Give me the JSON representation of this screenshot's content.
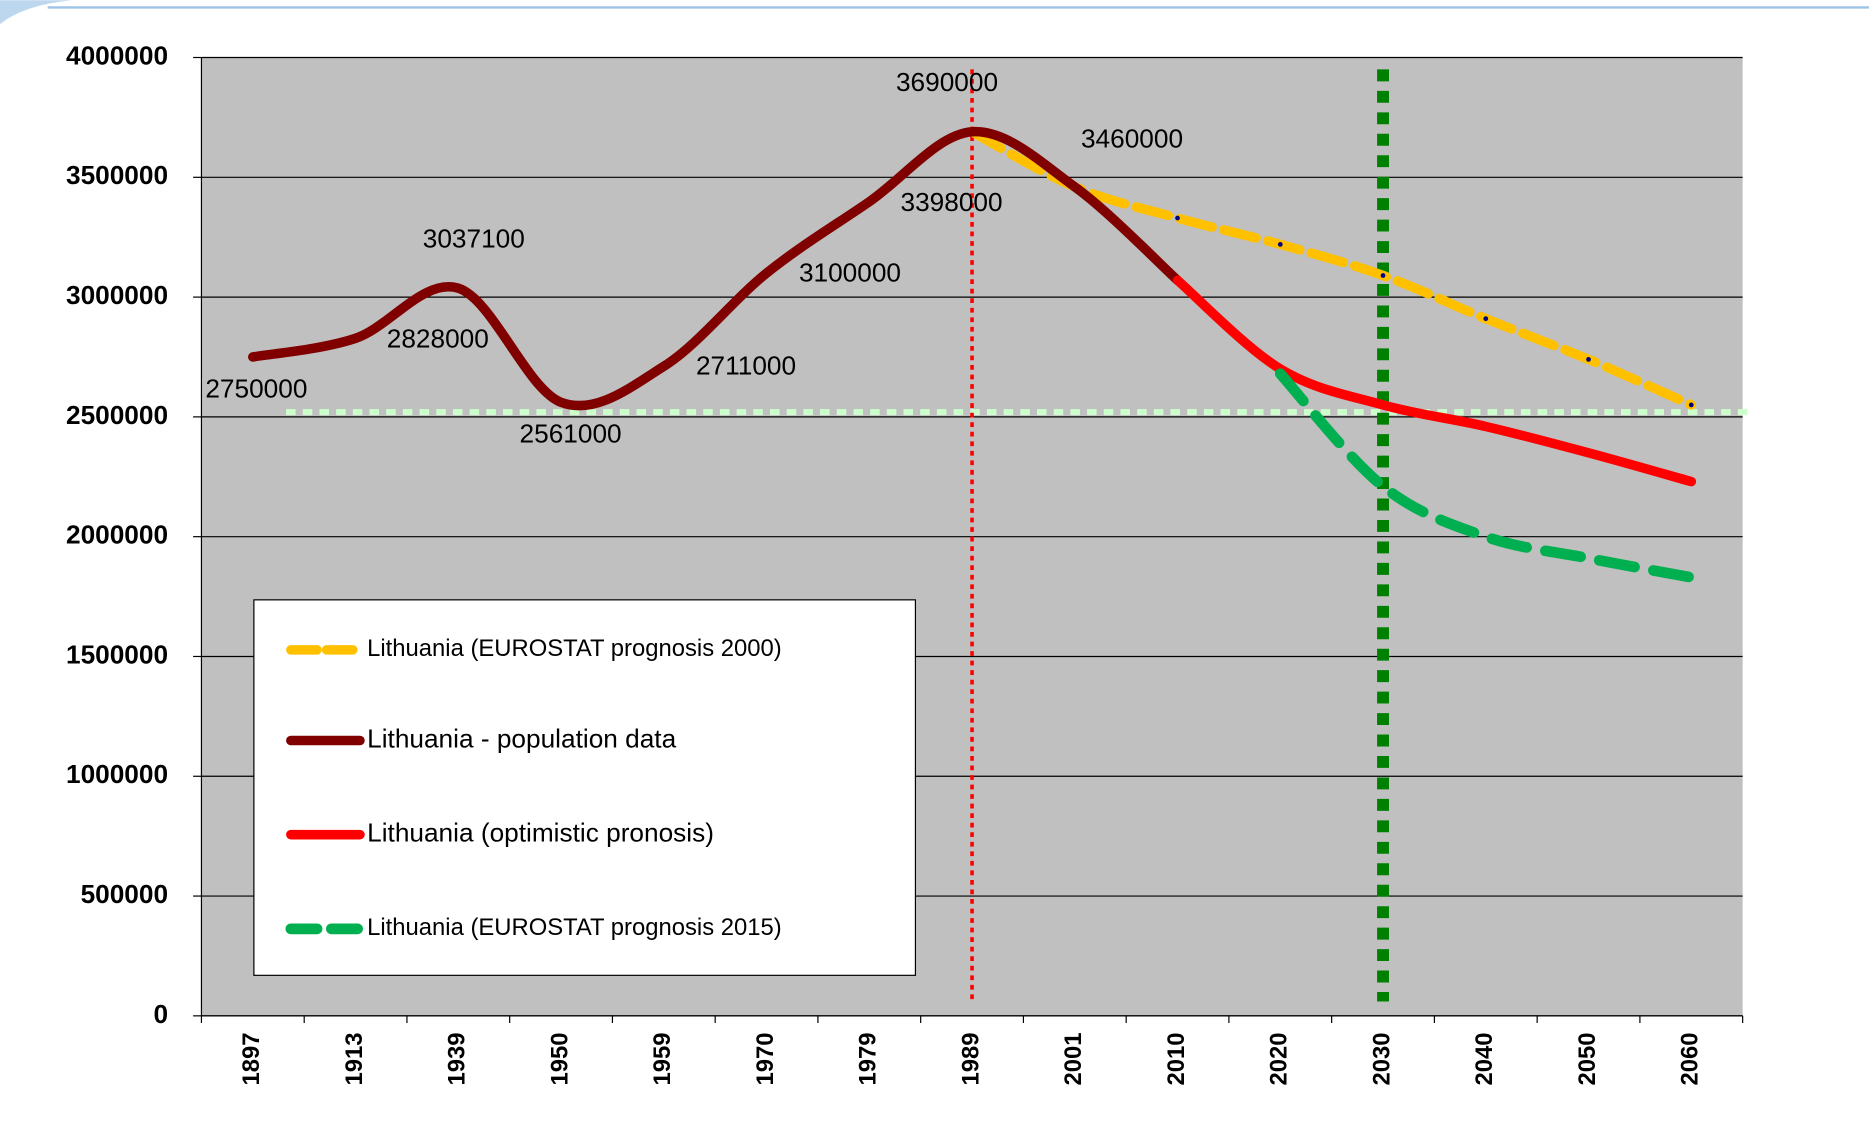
{
  "chart_data": {
    "type": "line",
    "categories": [
      "1897",
      "1913",
      "1939",
      "1950",
      "1959",
      "1970",
      "1979",
      "1989",
      "2001",
      "2010",
      "2020",
      "2030",
      "2040",
      "2050",
      "2060"
    ],
    "series": [
      {
        "name": "Lithuania (EUROSTAT prognosis 2000)",
        "color": "#ffc000",
        "style": "dashed",
        "values": [
          null,
          null,
          null,
          null,
          null,
          null,
          null,
          3690000,
          3460000,
          3330000,
          3220000,
          3090000,
          2910000,
          2740000,
          2550000
        ]
      },
      {
        "name": "Lithuania - population data",
        "color": "#800000",
        "style": "solid",
        "values": [
          2750000,
          2828000,
          3037100,
          2561000,
          2711000,
          3100000,
          3398000,
          3690000,
          3460000,
          3070000,
          null,
          null,
          null,
          null,
          null
        ]
      },
      {
        "name": "Lithuania (optimistic pronosis)",
        "color": "#ff0000",
        "style": "solid",
        "values": [
          null,
          null,
          null,
          null,
          null,
          null,
          null,
          null,
          null,
          3070000,
          2700000,
          2550000,
          2460000,
          2350000,
          2230000
        ]
      },
      {
        "name": "Lithuania (EUROSTAT prognosis 2015)",
        "color": "#00b050",
        "style": "dashed",
        "values": [
          null,
          null,
          null,
          null,
          null,
          null,
          null,
          null,
          null,
          null,
          2680000,
          2210000,
          2000000,
          1910000,
          1830000
        ]
      }
    ],
    "labeled_series": 1,
    "labeled_points": [
      0,
      1,
      2,
      3,
      4,
      5,
      6,
      7,
      8
    ],
    "ylim": [
      0,
      4000000
    ],
    "yticks": [
      0,
      500000,
      1000000,
      1500000,
      2000000,
      2500000,
      3000000,
      3500000,
      4000000
    ],
    "grid": true,
    "reference_lines": [
      {
        "category": "1989",
        "color": "#ff0000"
      },
      {
        "category": "2030",
        "color": "#008000"
      }
    ],
    "hline": {
      "value": 2520000,
      "color": "#ccffcc"
    }
  }
}
